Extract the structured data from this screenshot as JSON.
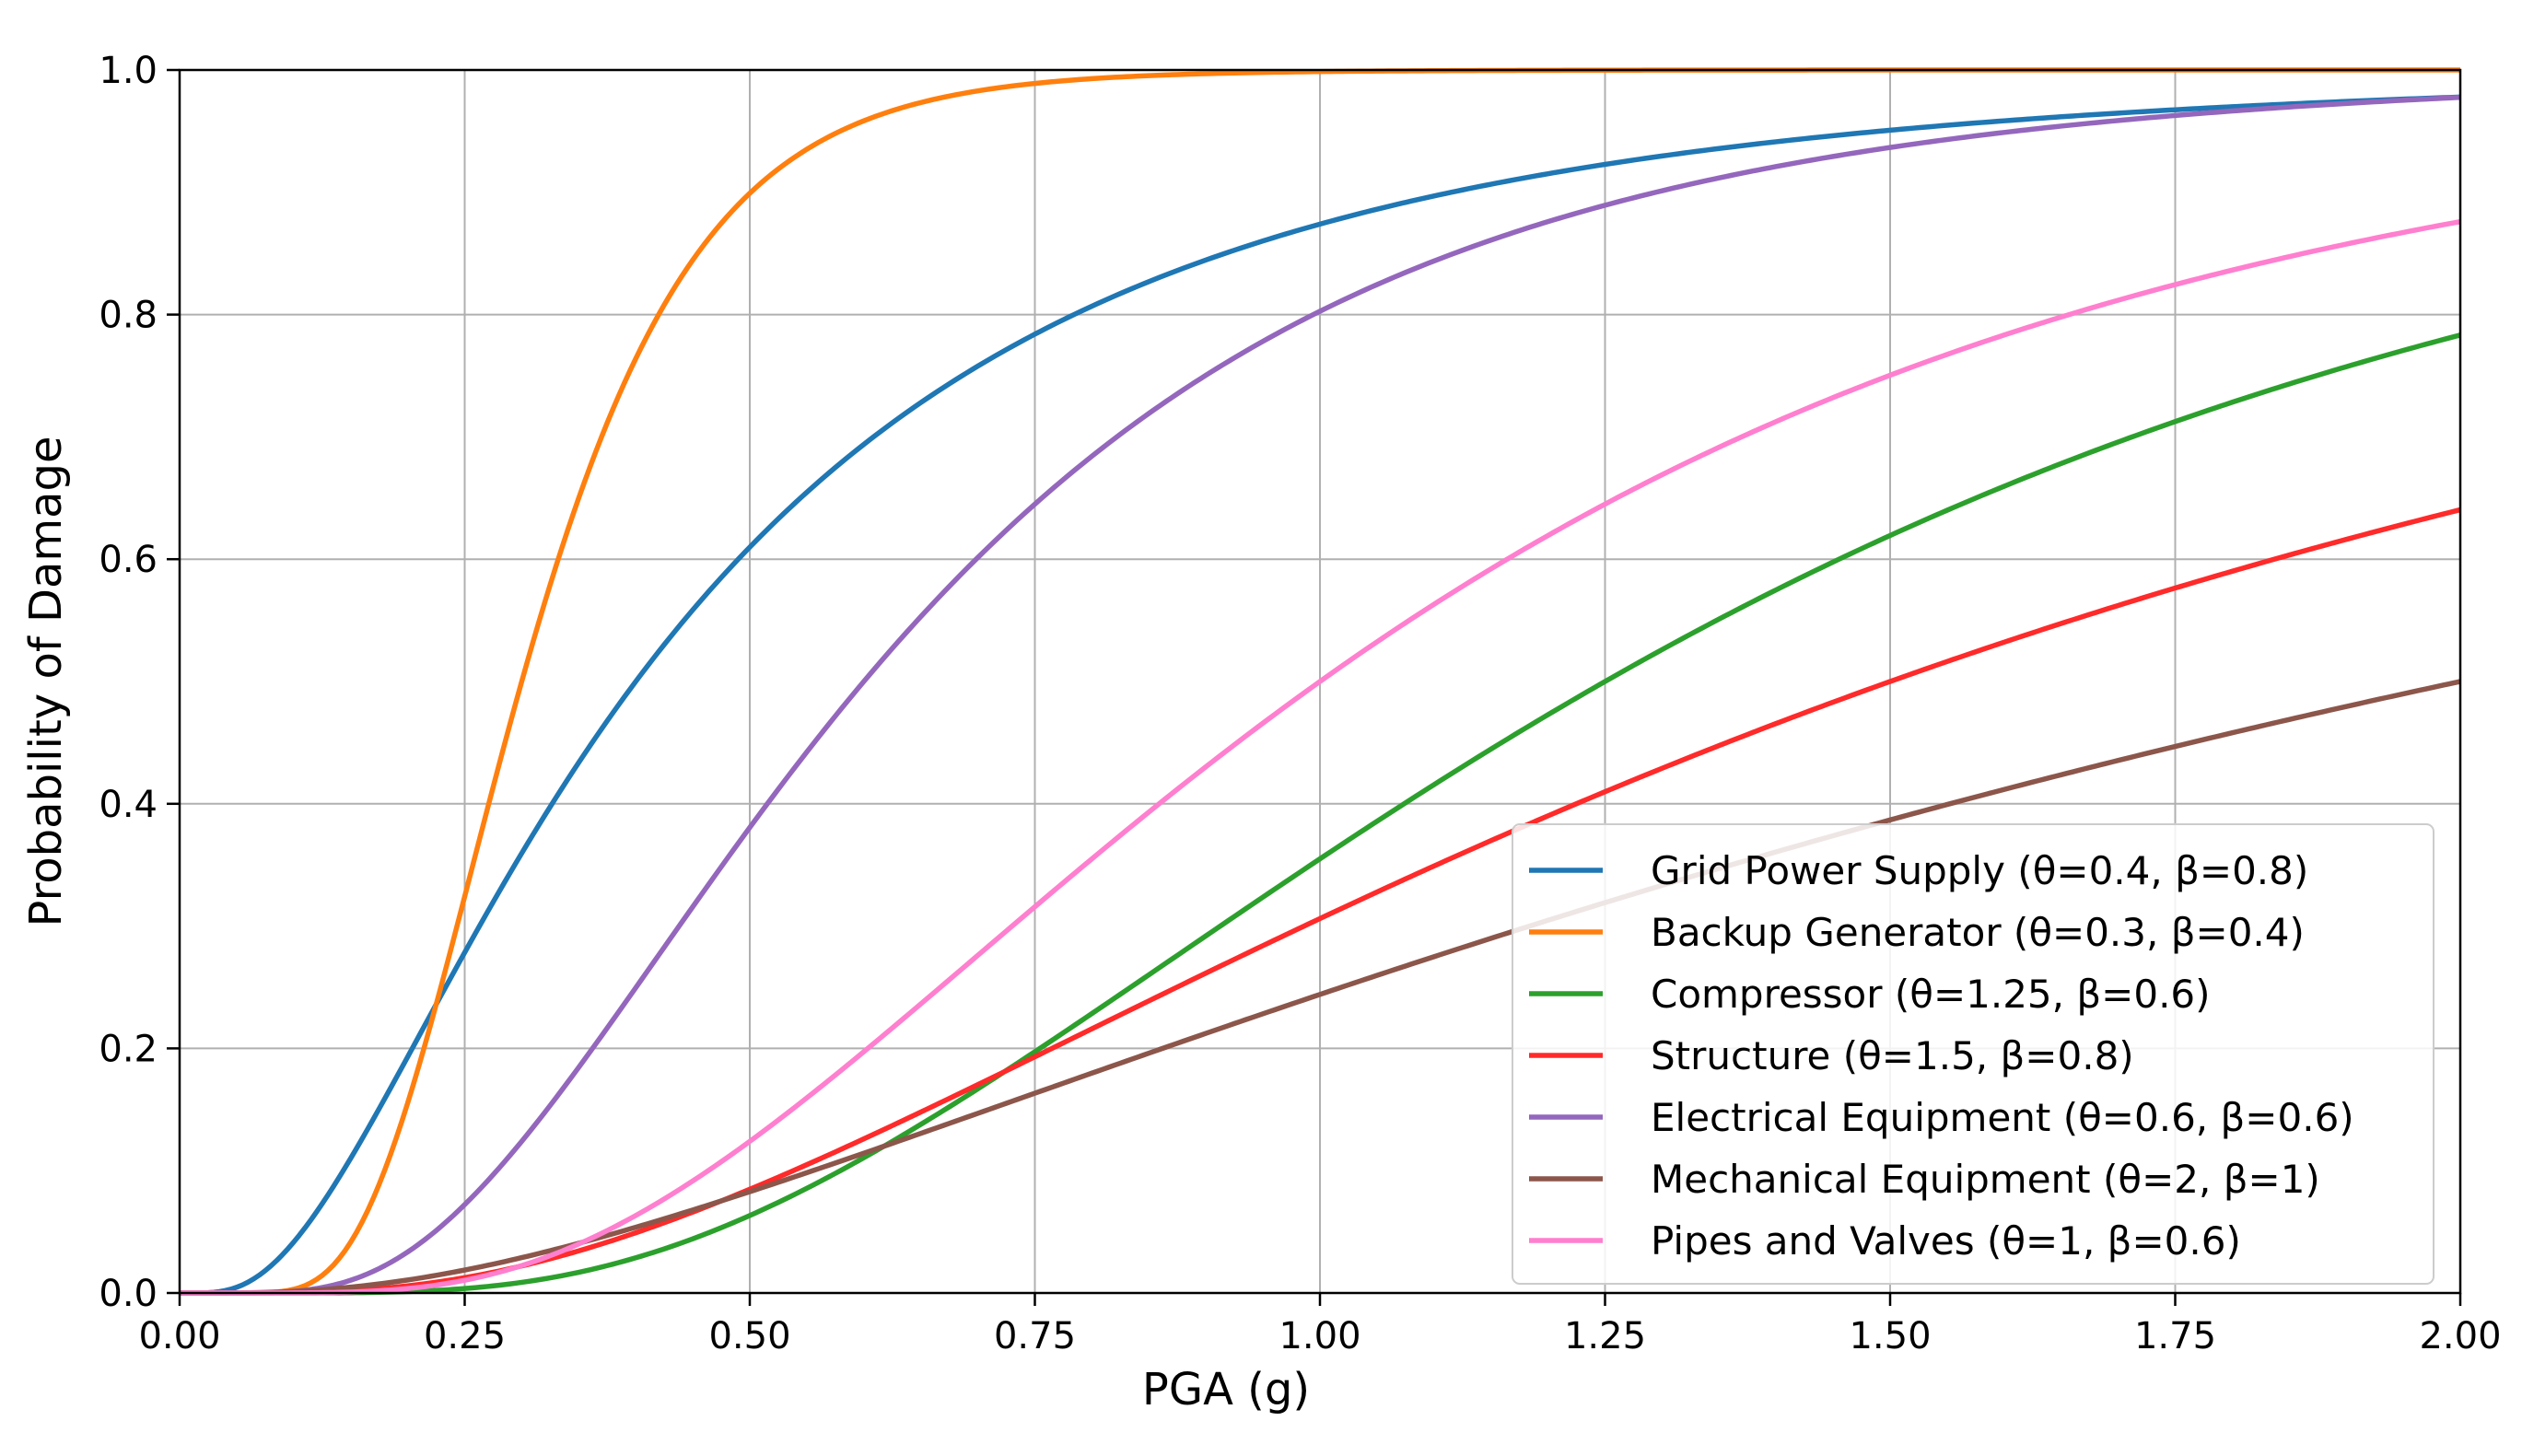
{
  "chart_data": {
    "type": "line",
    "title": "",
    "xlabel": "PGA (g)",
    "ylabel": "Probability of Damage",
    "xlim": [
      0,
      2
    ],
    "ylim": [
      0,
      1
    ],
    "grid": true,
    "legend_position": "lower-right",
    "x_ticks": [
      0,
      0.25,
      0.5,
      0.75,
      1.0,
      1.25,
      1.5,
      1.75,
      2.0
    ],
    "x_tick_labels": [
      "0.00",
      "0.25",
      "0.50",
      "0.75",
      "1.00",
      "1.25",
      "1.50",
      "1.75",
      "2.00"
    ],
    "y_ticks": [
      0,
      0.2,
      0.4,
      0.6,
      0.8,
      1.0
    ],
    "y_tick_labels": [
      "0.0",
      "0.2",
      "0.4",
      "0.6",
      "0.8",
      "1.0"
    ],
    "curve_model": "lognormal cumulative distribution: P = Phi(ln(x / theta) / beta)",
    "series": [
      {
        "name": "Grid Power Supply (θ=0.4, β=0.8)",
        "theta": 0.4,
        "beta": 0.8,
        "color": "#1f77b4"
      },
      {
        "name": "Backup Generator (θ=0.3, β=0.4)",
        "theta": 0.3,
        "beta": 0.4,
        "color": "#ff7f0e"
      },
      {
        "name": "Compressor (θ=1.25, β=0.6)",
        "theta": 1.25,
        "beta": 0.6,
        "color": "#2ca02c"
      },
      {
        "name": "Structure (θ=1.5, β=0.8)",
        "theta": 1.5,
        "beta": 0.8,
        "color": "#ff2a2a"
      },
      {
        "name": "Electrical Equipment (θ=0.6, β=0.6)",
        "theta": 0.6,
        "beta": 0.6,
        "color": "#9467bd"
      },
      {
        "name": "Mechanical Equipment (θ=2, β=1)",
        "theta": 2,
        "beta": 1,
        "color": "#8c564b"
      },
      {
        "name": "Pipes and Valves (θ=1, β=0.6)",
        "theta": 1,
        "beta": 0.6,
        "color": "#ff7fcf"
      }
    ]
  }
}
